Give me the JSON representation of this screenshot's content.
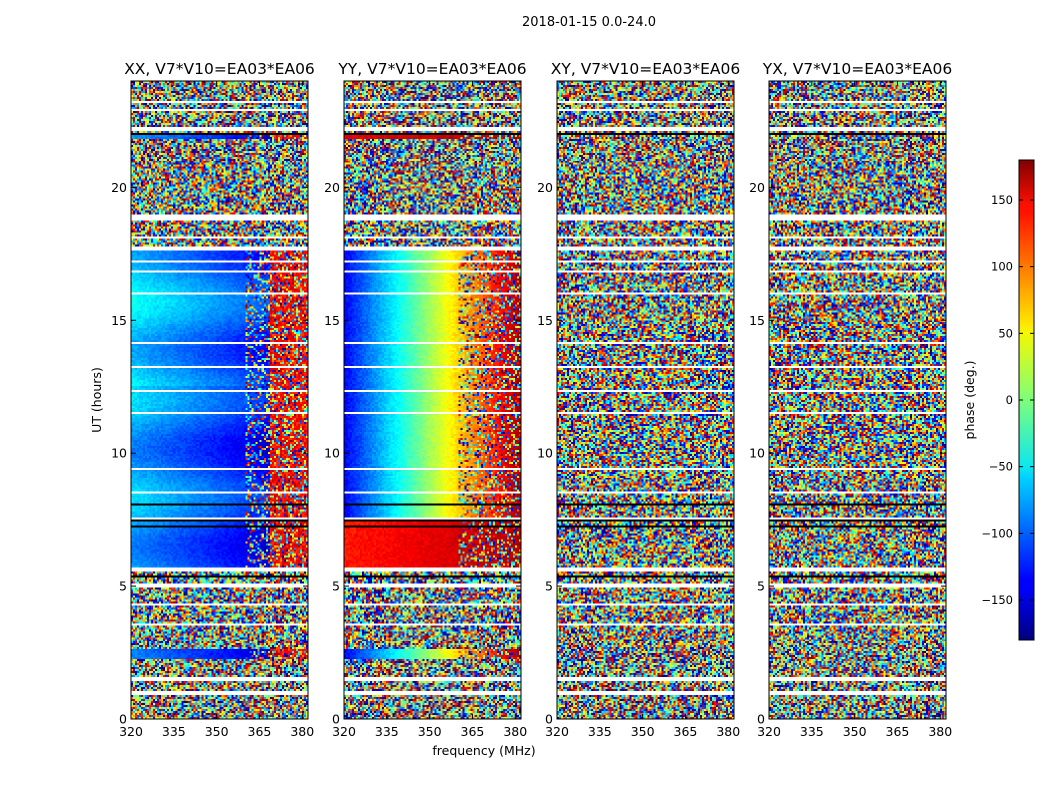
{
  "chart_data": {
    "type": "heatmap",
    "suptitle": "2018-01-15 0.0-24.0",
    "panels": [
      {
        "title": "XX, V7*V10=EA03*EA06",
        "pattern": "xx"
      },
      {
        "title": "YY, V7*V10=EA03*EA06",
        "pattern": "yy"
      },
      {
        "title": "XY, V7*V10=EA03*EA06",
        "pattern": "noise"
      },
      {
        "title": "YX, V7*V10=EA03*EA06",
        "pattern": "noise"
      }
    ],
    "xlabel": "frequency (MHz)",
    "ylabel": "UT (hours)",
    "xlim": [
      320,
      382
    ],
    "ylim": [
      0,
      24
    ],
    "xticks": [
      320,
      335,
      350,
      365,
      380
    ],
    "yticks": [
      0,
      5,
      10,
      15,
      20
    ],
    "colorbar": {
      "label": "phase (deg.)",
      "range": [
        -180,
        180
      ],
      "ticks": [
        150,
        100,
        50,
        0,
        -50,
        -100,
        -150
      ],
      "tick_labels": [
        "150",
        "100",
        "50",
        "0",
        "−50",
        "−100",
        "−150"
      ],
      "colormap": "jet"
    },
    "flagged_ut_ranges": [
      [
        0.9,
        1.05
      ],
      [
        1.45,
        1.55
      ],
      [
        2.15,
        2.2
      ],
      [
        4.95,
        5.1
      ],
      [
        5.55,
        5.7
      ],
      [
        7.5,
        7.6
      ],
      [
        17.65,
        17.75
      ],
      [
        18.75,
        18.95
      ],
      [
        22.15,
        22.25
      ],
      [
        22.85,
        22.95
      ]
    ]
  }
}
